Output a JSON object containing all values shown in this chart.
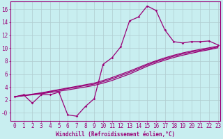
{
  "background_color": "#c8eef0",
  "grid_color": "#b0ccd0",
  "line_color": "#990077",
  "marker": "D",
  "marker_size": 1.8,
  "line_width": 0.9,
  "xlabel": "Windchill (Refroidissement éolien,°C)",
  "xlabel_fontsize": 5.5,
  "tick_fontsize": 5.5,
  "xlim_min": -0.5,
  "xlim_max": 23.3,
  "ylim_min": -1.2,
  "ylim_max": 17.2,
  "ytick_labels": [
    "-0",
    "2",
    "4",
    "6",
    "8",
    "10",
    "12",
    "14",
    "16"
  ],
  "ytick_vals": [
    0,
    2,
    4,
    6,
    8,
    10,
    12,
    14,
    16
  ],
  "xticks": [
    0,
    1,
    2,
    3,
    4,
    5,
    6,
    7,
    8,
    9,
    10,
    11,
    12,
    13,
    14,
    15,
    16,
    17,
    18,
    19,
    20,
    21,
    22,
    23
  ],
  "series_marked_x": [
    0,
    1,
    2,
    3,
    4,
    5,
    6,
    7,
    8,
    9,
    10,
    11,
    12,
    13,
    14,
    15,
    16,
    17,
    18,
    19,
    20,
    21,
    22,
    23
  ],
  "series_marked_y": [
    2.5,
    2.8,
    1.5,
    2.8,
    2.8,
    3.2,
    -0.3,
    -0.5,
    1.0,
    2.2,
    7.5,
    8.5,
    10.2,
    14.2,
    14.8,
    16.5,
    15.8,
    12.8,
    11.0,
    10.8,
    11.0,
    11.0,
    11.1,
    10.5
  ],
  "series_a_x": [
    0,
    1,
    2,
    3,
    4,
    5,
    6,
    7,
    8,
    9,
    10,
    11,
    12,
    13,
    14,
    15,
    16,
    17,
    18,
    19,
    20,
    21,
    22,
    23
  ],
  "series_a_y": [
    2.5,
    2.65,
    2.8,
    2.95,
    3.15,
    3.35,
    3.55,
    3.78,
    4.0,
    4.25,
    4.6,
    5.0,
    5.5,
    6.0,
    6.6,
    7.2,
    7.7,
    8.15,
    8.55,
    8.9,
    9.2,
    9.5,
    9.75,
    10.05
  ],
  "series_b_x": [
    0,
    1,
    2,
    3,
    4,
    5,
    6,
    7,
    8,
    9,
    10,
    11,
    12,
    13,
    14,
    15,
    16,
    17,
    18,
    19,
    20,
    21,
    22,
    23
  ],
  "series_b_y": [
    2.5,
    2.7,
    2.9,
    3.1,
    3.35,
    3.6,
    3.85,
    4.1,
    4.35,
    4.6,
    5.0,
    5.45,
    5.95,
    6.45,
    7.0,
    7.55,
    8.05,
    8.5,
    8.9,
    9.25,
    9.55,
    9.8,
    10.05,
    10.3
  ],
  "series_c_x": [
    0,
    1,
    2,
    3,
    4,
    5,
    6,
    7,
    8,
    9,
    10,
    11,
    12,
    13,
    14,
    15,
    16,
    17,
    18,
    19,
    20,
    21,
    22,
    23
  ],
  "series_c_y": [
    2.5,
    2.68,
    2.86,
    3.05,
    3.28,
    3.52,
    3.75,
    3.98,
    4.22,
    4.45,
    4.82,
    5.25,
    5.75,
    6.25,
    6.82,
    7.4,
    7.9,
    8.35,
    8.75,
    9.1,
    9.4,
    9.65,
    9.9,
    10.18
  ]
}
